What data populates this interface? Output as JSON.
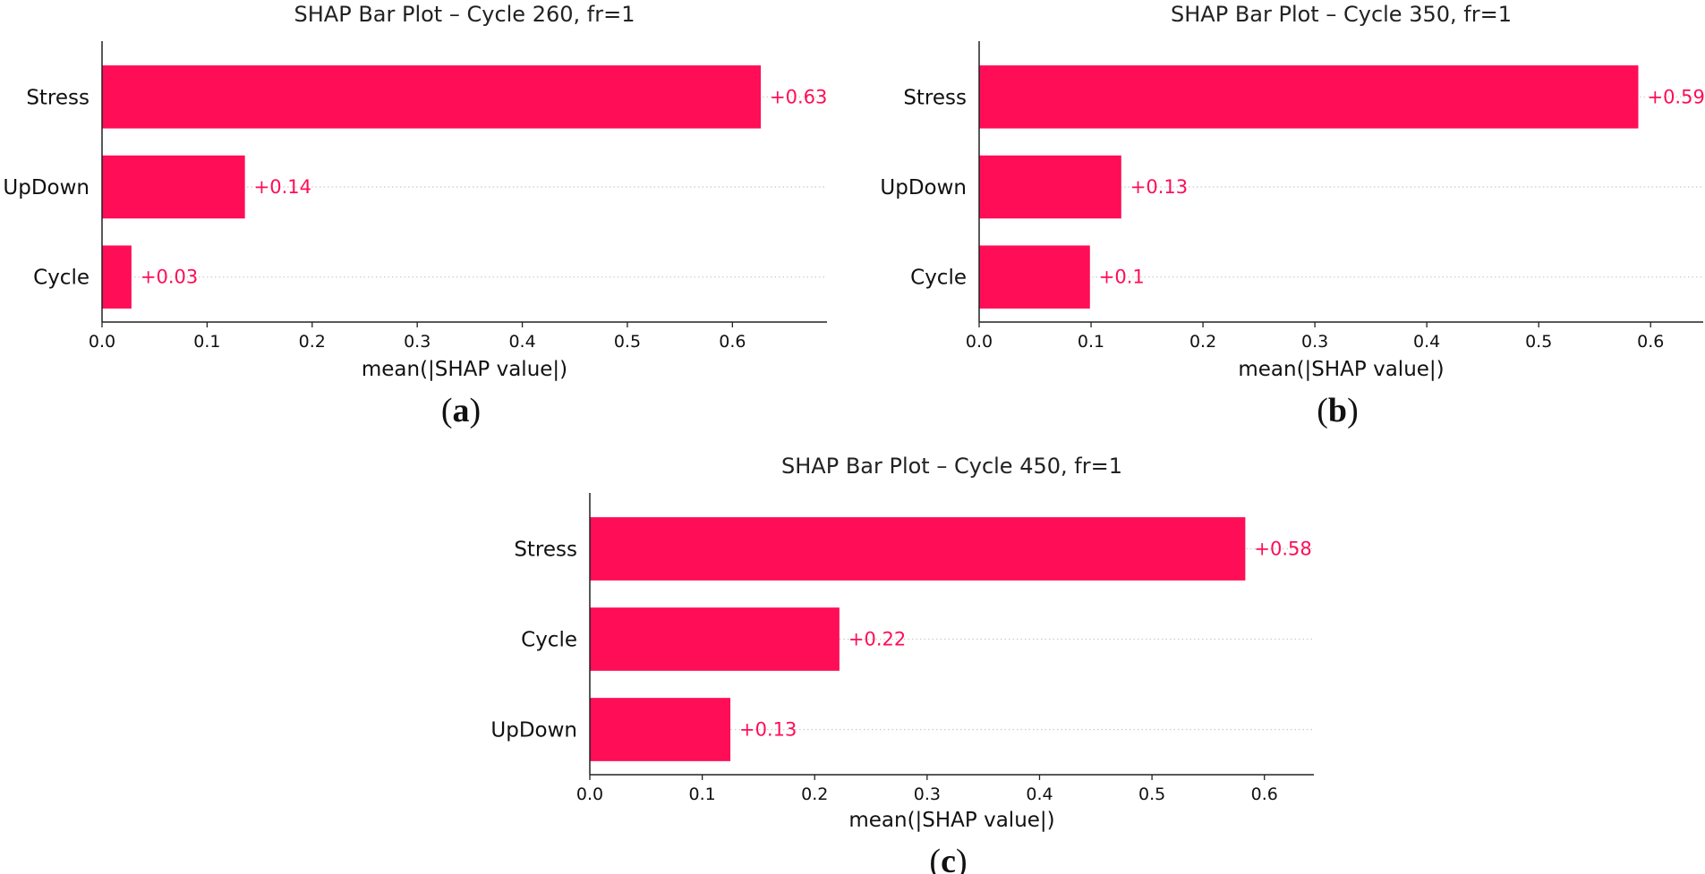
{
  "figure": {
    "bar_color": "#ff0d57",
    "axis_color": "#222222",
    "gridline_color": "#cccccc"
  },
  "chart_data": [
    {
      "type": "bar",
      "orientation": "horizontal",
      "title": "SHAP Bar Plot – Cycle 260, fr=1",
      "panel_label": "a",
      "categories": [
        "Stress",
        "UpDown",
        "Cycle"
      ],
      "values": [
        0.627,
        0.136,
        0.028
      ],
      "value_labels": [
        "+0.63",
        "+0.14",
        "+0.03"
      ],
      "xlabel": "mean(|SHAP value|)",
      "xticks": [
        "0.0",
        "0.1",
        "0.2",
        "0.3",
        "0.4",
        "0.5",
        "0.6"
      ],
      "xlim": [
        0,
        0.69
      ],
      "grid": "dotted row lines"
    },
    {
      "type": "bar",
      "orientation": "horizontal",
      "title": "SHAP Bar Plot – Cycle 350, fr=1",
      "panel_label": "b",
      "categories": [
        "Stress",
        "UpDown",
        "Cycle"
      ],
      "values": [
        0.589,
        0.127,
        0.099
      ],
      "value_labels": [
        "+0.59",
        "+0.13",
        "+0.1"
      ],
      "xlabel": "mean(|SHAP value|)",
      "xticks": [
        "0.0",
        "0.1",
        "0.2",
        "0.3",
        "0.4",
        "0.5",
        "0.6"
      ],
      "xlim": [
        0,
        0.647
      ],
      "grid": "dotted row lines"
    },
    {
      "type": "bar",
      "orientation": "horizontal",
      "title": "SHAP Bar Plot – Cycle 450, fr=1",
      "panel_label": "c",
      "categories": [
        "Stress",
        "Cycle",
        "UpDown"
      ],
      "values": [
        0.583,
        0.222,
        0.125
      ],
      "value_labels": [
        "+0.58",
        "+0.22",
        "+0.13"
      ],
      "xlabel": "mean(|SHAP value|)",
      "xticks": [
        "0.0",
        "0.1",
        "0.2",
        "0.3",
        "0.4",
        "0.5",
        "0.6"
      ],
      "xlim": [
        0,
        0.644
      ],
      "grid": "dotted row lines"
    }
  ]
}
